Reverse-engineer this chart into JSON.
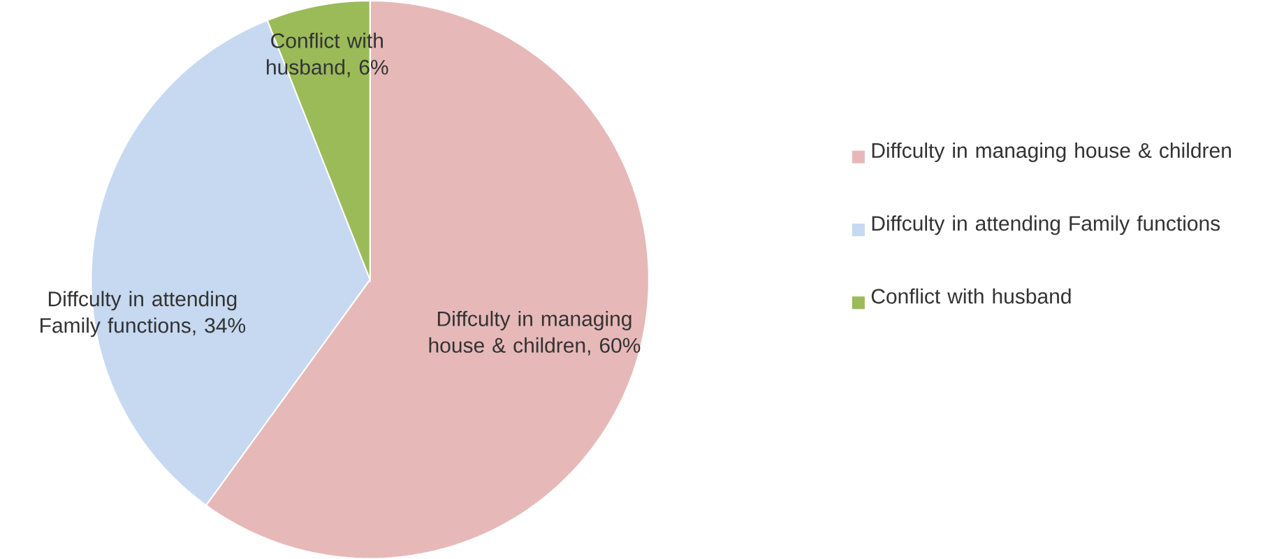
{
  "chart_data": {
    "type": "pie",
    "categories": [
      "Diffculty in managing house & children",
      "Diffculty in attending Family functions",
      "Conflict with husband"
    ],
    "values": [
      60,
      34,
      6
    ],
    "colors": [
      "#e6b9b8",
      "#c6d9f1",
      "#9bbb59"
    ],
    "value_labels": [
      "Diffculty in managing house & children, 60%",
      "Diffculty in attending Family functions, 34%",
      "Conflict with husband, 6%"
    ],
    "legend": "right"
  }
}
